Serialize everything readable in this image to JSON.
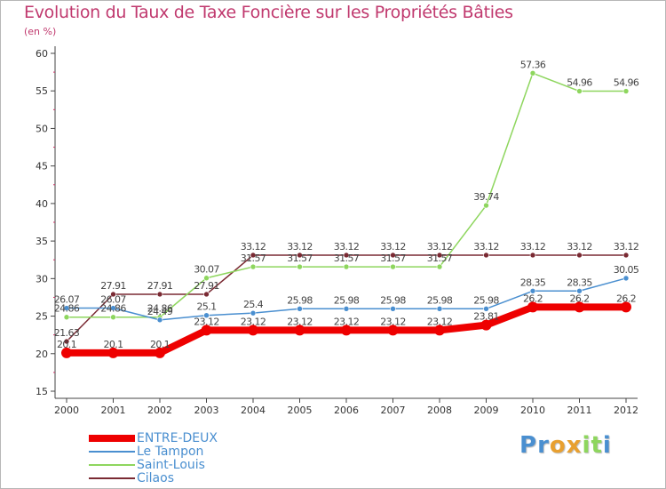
{
  "chart_data": {
    "type": "line",
    "title": "Evolution du Taux de Taxe Foncière sur les Propriétés Bâties",
    "subtitle": "(en %)",
    "xlabel": "",
    "ylabel": "(en %)",
    "ylim": [
      15,
      60
    ],
    "yticks": [
      15,
      20,
      25,
      30,
      35,
      40,
      45,
      50,
      55,
      60
    ],
    "x": [
      "2000",
      "2001",
      "2002",
      "2003",
      "2004",
      "2005",
      "2006",
      "2007",
      "2008",
      "2009",
      "2010",
      "2011",
      "2012"
    ],
    "grid": false,
    "legend": "bottom-left",
    "series": [
      {
        "name": "ENTRE-DEUX",
        "color": "#ee0000",
        "values": [
          20.1,
          20.1,
          20.1,
          23.12,
          23.12,
          23.12,
          23.12,
          23.12,
          23.12,
          23.81,
          26.2,
          26.2,
          26.2
        ],
        "labels": [
          "20.1",
          "20.1",
          "20.1",
          "23.12",
          "23.12",
          "23.12",
          "23.12",
          "23.12",
          "23.12",
          "23.81",
          "26.2",
          "26.2",
          "26.2"
        ]
      },
      {
        "name": "Le Tampon",
        "color": "#4a8fd0",
        "values": [
          26.07,
          26.07,
          24.49,
          25.1,
          25.4,
          25.98,
          25.98,
          25.98,
          25.98,
          25.98,
          28.35,
          28.35,
          30.05
        ],
        "labels": [
          "26.07",
          "26.07",
          "24.49",
          "25.1",
          "25.4",
          "25.98",
          "25.98",
          "25.98",
          "25.98",
          "25.98",
          "28.35",
          "28.35",
          "30.05"
        ]
      },
      {
        "name": "Saint-Louis",
        "color": "#8ed65e",
        "values": [
          24.86,
          24.86,
          24.86,
          30.07,
          31.57,
          31.57,
          31.57,
          31.57,
          31.57,
          39.74,
          57.36,
          54.96,
          54.96
        ],
        "labels": [
          "24.86",
          "24.86",
          "24.86",
          "30.07",
          "31.57",
          "31.57",
          "31.57",
          "31.57",
          "31.57",
          "39.74",
          "57.36",
          "54.96",
          "54.96"
        ]
      },
      {
        "name": "Cilaos",
        "color": "#7a2a33",
        "values": [
          21.63,
          27.91,
          27.91,
          27.91,
          33.12,
          33.12,
          33.12,
          33.12,
          33.12,
          33.12,
          33.12,
          33.12,
          33.12
        ],
        "labels": [
          "21.63",
          "27.91",
          "27.91",
          "27.91",
          "33.12",
          "33.12",
          "33.12",
          "33.12",
          "33.12",
          "33.12",
          "33.12",
          "33.12",
          "33.12"
        ]
      }
    ]
  },
  "brand": {
    "letters": [
      {
        "ch": "P",
        "color": "#4a8fd0"
      },
      {
        "ch": "r",
        "color": "#4a8fd0"
      },
      {
        "ch": "o",
        "color": "#e8a030"
      },
      {
        "ch": "x",
        "color": "#e8a030"
      },
      {
        "ch": "i",
        "color": "#8ed65e"
      },
      {
        "ch": "t",
        "color": "#8ed65e"
      },
      {
        "ch": "i",
        "color": "#4a8fd0"
      }
    ]
  }
}
